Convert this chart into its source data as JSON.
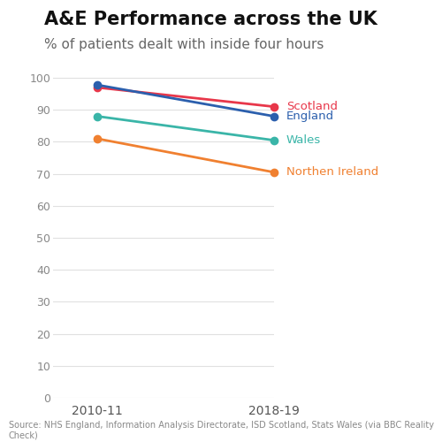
{
  "title": "A&E Performance across the UK",
  "subtitle": "% of patients dealt with inside four hours",
  "x_labels": [
    "2010-11",
    "2018-19"
  ],
  "series": [
    {
      "name": "Scotland",
      "color": "#e8374a",
      "values": [
        97.0,
        91.0
      ],
      "marker": "o"
    },
    {
      "name": "England",
      "color": "#2b5fad",
      "values": [
        97.8,
        88.0
      ],
      "marker": "o"
    },
    {
      "name": "Wales",
      "color": "#3ab5a8",
      "values": [
        88.0,
        80.5
      ],
      "marker": "o"
    },
    {
      "name": "Northen Ireland",
      "color": "#f08030",
      "values": [
        81.0,
        70.5
      ],
      "marker": "o"
    }
  ],
  "ylim": [
    0,
    105
  ],
  "yticks": [
    0,
    10,
    20,
    30,
    40,
    50,
    60,
    70,
    80,
    90,
    100
  ],
  "source_text": "Source: NHS England, Information Analysis Directorate, ISD Scotland, Stats Wales (via BBC Reality Check)",
  "background_color": "#ffffff",
  "title_fontsize": 15,
  "subtitle_fontsize": 11,
  "label_fontsize": 9.5,
  "tick_fontsize": 9,
  "source_fontsize": 7,
  "line_width": 2.0,
  "marker_size": 6
}
